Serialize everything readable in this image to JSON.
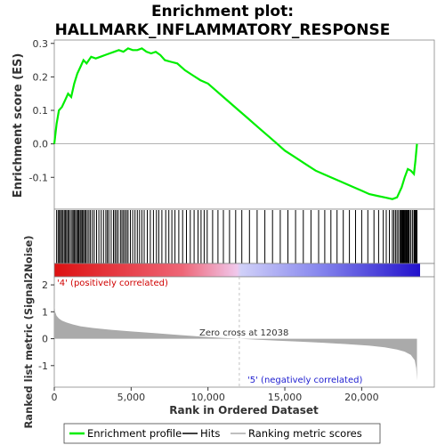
{
  "chart_data": {
    "type": "line",
    "title_line1": "Enrichment plot:",
    "title_line2": "HALLMARK_INFLAMMATORY_RESPONSE",
    "xlabel": "Rank in Ordered Dataset",
    "xlim": [
      0,
      23800
    ],
    "xticks": [
      "0",
      "5,000",
      "10,000",
      "15,000",
      "20,000"
    ],
    "xtick_values": [
      0,
      5000,
      10000,
      15000,
      20000
    ],
    "enrichment_panel": {
      "ylabel": "Enrichment score (ES)",
      "ylim": [
        -0.195,
        0.31
      ],
      "yticks": [
        "0.3",
        "0.2",
        "0.1",
        "0.0",
        "-0.1"
      ],
      "ytick_values": [
        0.3,
        0.2,
        0.1,
        0.0,
        -0.1
      ],
      "series": [
        {
          "name": "Enrichment profile",
          "color": "#00ee00",
          "x": [
            0,
            150,
            300,
            500,
            700,
            900,
            1100,
            1300,
            1500,
            1700,
            1900,
            2100,
            2400,
            2700,
            3000,
            3300,
            3600,
            3900,
            4200,
            4500,
            4800,
            5100,
            5400,
            5700,
            6000,
            6300,
            6600,
            6900,
            7200,
            7600,
            8000,
            8500,
            9000,
            9500,
            10000,
            10500,
            11000,
            11500,
            12000,
            12500,
            13000,
            13500,
            14000,
            14500,
            15000,
            15500,
            16000,
            16500,
            17000,
            17500,
            18000,
            18500,
            19000,
            19500,
            20000,
            20500,
            21000,
            21500,
            22000,
            22300,
            22600,
            22800,
            23000,
            23200,
            23400,
            23500,
            23600
          ],
          "y": [
            0.0,
            0.06,
            0.1,
            0.11,
            0.13,
            0.15,
            0.14,
            0.18,
            0.21,
            0.23,
            0.25,
            0.24,
            0.26,
            0.255,
            0.26,
            0.265,
            0.27,
            0.275,
            0.28,
            0.275,
            0.285,
            0.28,
            0.28,
            0.285,
            0.275,
            0.27,
            0.275,
            0.265,
            0.25,
            0.245,
            0.24,
            0.22,
            0.205,
            0.19,
            0.18,
            0.16,
            0.14,
            0.12,
            0.1,
            0.08,
            0.06,
            0.04,
            0.02,
            0.0,
            -0.02,
            -0.035,
            -0.05,
            -0.065,
            -0.08,
            -0.09,
            -0.1,
            -0.11,
            -0.12,
            -0.13,
            -0.14,
            -0.15,
            -0.155,
            -0.16,
            -0.165,
            -0.16,
            -0.13,
            -0.1,
            -0.075,
            -0.08,
            -0.09,
            -0.05,
            0.0
          ]
        }
      ]
    },
    "hits_panel": {
      "legend_label": "Hits",
      "hit_ranks": [
        150,
        250,
        330,
        400,
        480,
        560,
        650,
        720,
        800,
        880,
        950,
        1050,
        1150,
        1230,
        1300,
        1380,
        1460,
        1540,
        1600,
        1680,
        1750,
        1830,
        1900,
        1980,
        2050,
        2150,
        2250,
        2350,
        2480,
        2600,
        2750,
        2900,
        3050,
        3200,
        3350,
        3450,
        3550,
        3700,
        3850,
        3950,
        4050,
        4150,
        4300,
        4400,
        4500,
        4600,
        4700,
        4800,
        4950,
        5100,
        5250,
        5400,
        5550,
        5700,
        5850,
        6050,
        6250,
        6450,
        6650,
        6800,
        7000,
        7250,
        7450,
        7650,
        7850,
        8100,
        8350,
        8600,
        8850,
        9100,
        9350,
        9550,
        9750,
        9950,
        10300,
        10650,
        11000,
        11400,
        11800,
        12200,
        12700,
        13200,
        13700,
        14200,
        14700,
        15200,
        15700,
        16200,
        16700,
        17200,
        17600,
        18000,
        18400,
        18800,
        19200,
        19600,
        20000,
        20400,
        20800,
        21100,
        21400,
        21600,
        21800,
        22000,
        22100,
        22200,
        22300,
        22400,
        22500,
        22550,
        22600,
        22650,
        22700,
        22750,
        22800,
        22850,
        22900,
        22950,
        23000,
        23050,
        23100,
        23200,
        23300,
        23400,
        23450,
        23500,
        23550,
        23600
      ]
    },
    "color_bar": {
      "positive_label": "'4' (positively correlated)",
      "negative_label": "'5' (negatively correlated)",
      "positive_color": "#dd1111",
      "negative_color": "#2211cc"
    },
    "metric_panel": {
      "ylabel": "Ranked list metric (Signal2Noise)",
      "legend_label": "Ranking metric scores",
      "fill_color": "#aaaaaa",
      "ylim": [
        -1.8,
        2.3
      ],
      "yticks": [
        "2",
        "1",
        "0",
        "-1"
      ],
      "ytick_values": [
        2,
        1,
        0,
        -1
      ],
      "zero_cross_label": "Zero cross at 12038",
      "zero_cross_rank": 12038,
      "x": [
        0,
        50,
        150,
        300,
        500,
        800,
        1200,
        1700,
        2500,
        3500,
        5000,
        6500,
        8000,
        9500,
        11000,
        12038,
        13000,
        14500,
        16000,
        17500,
        19000,
        20500,
        21500,
        22300,
        22800,
        23200,
        23450,
        23550,
        23600
      ],
      "y": [
        1.3,
        1.0,
        0.85,
        0.75,
        0.67,
        0.6,
        0.53,
        0.46,
        0.4,
        0.34,
        0.27,
        0.21,
        0.14,
        0.08,
        0.03,
        0.0,
        -0.03,
        -0.07,
        -0.11,
        -0.15,
        -0.2,
        -0.26,
        -0.32,
        -0.4,
        -0.48,
        -0.6,
        -0.8,
        -1.1,
        -1.55
      ]
    }
  },
  "legend": {
    "enrichment": "Enrichment profile",
    "hits": "Hits",
    "metric": "Ranking metric scores"
  }
}
